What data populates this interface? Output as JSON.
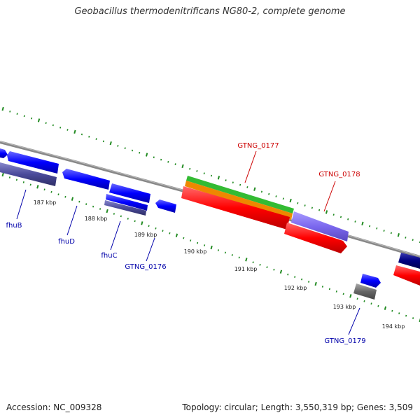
{
  "title": "Geobacillus thermodenitrificans NG80-2, complete genome",
  "footer": {
    "accession": "Accession: NC_009328",
    "summary": "Topology: circular; Length: 3,550,319 bp; Genes: 3,509"
  },
  "kbp_ticks": [
    "187 kbp",
    "188 kbp",
    "189 kbp",
    "190 kbp",
    "191 kbp",
    "192 kbp",
    "193 kbp",
    "194 kbp"
  ],
  "gene_labels": {
    "fhuB": "fhuB",
    "fhuD": "fhuD",
    "fhuC": "fhuC",
    "GTNG_0176": "GTNG_0176",
    "GTNG_0177": "GTNG_0177",
    "GTNG_0178": "GTNG_0178",
    "GTNG_0179": "GTNG_0179"
  },
  "colors": {
    "forward_gene": "#0000ff",
    "cds_bar": "#4a4a9a",
    "highlight_gene": "#ff0000",
    "rna_green": "#33bb33",
    "rna_orange": "#ee8800",
    "lavender": "#7b68ee",
    "gray_gene": "#666666",
    "navy_gene": "#000080",
    "backbone": "#777777",
    "tick_dots": "#228b22",
    "label_blue": "#0000aa",
    "label_red": "#cc0000"
  }
}
